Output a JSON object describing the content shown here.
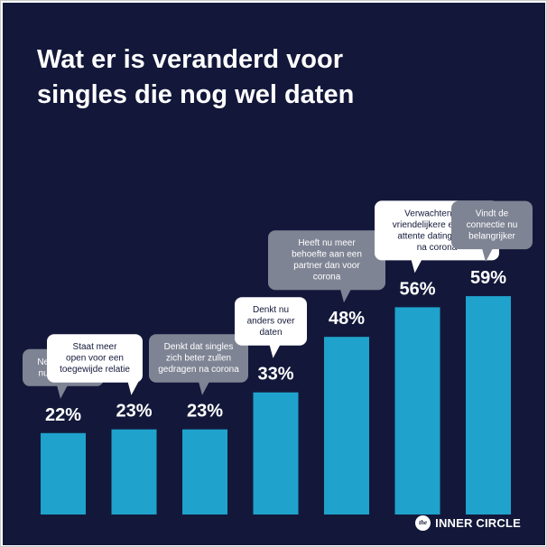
{
  "title_lines": [
    "Wat er is veranderd voor",
    "singles die nog wel daten"
  ],
  "logo": {
    "mark": "the",
    "text": "INNER CIRCLE"
  },
  "colors": {
    "background": "#13183a",
    "bar": "#1fa3cc",
    "bubble_gray": "#7f8494",
    "bubble_white": "#ffffff",
    "text_light": "#ffffff",
    "text_dark": "#13183a"
  },
  "chart_data": {
    "type": "bar",
    "title": "Wat er is veranderd voor singles die nog wel daten",
    "ylim": [
      0,
      100
    ],
    "grid": false,
    "categories": [
      "Neemt daten nu serieuzer",
      "Staat meer open voor een toegewijde relatie",
      "Denkt dat singles zich beter zullen gedragen na corona",
      "Denkt nu anders over daten",
      "Heeft nu meer behoefte aan een partner dan voor corona",
      "Verwachten een vriendelijkere en meer attente datingscene na corona",
      "Vindt de connectie nu belangrijker"
    ],
    "values": [
      22,
      23,
      23,
      33,
      48,
      56,
      59
    ],
    "value_labels": [
      "22%",
      "23%",
      "23%",
      "33%",
      "48%",
      "56%",
      "59%"
    ],
    "annotations": [
      {
        "lines": [
          "Neemt daten",
          "nu serieuzer"
        ],
        "style": "gray"
      },
      {
        "lines": [
          "Staat meer",
          "open voor een",
          "toegewijde relatie"
        ],
        "style": "white"
      },
      {
        "lines": [
          "Denkt dat singles",
          "zich beter zullen",
          "gedragen na corona"
        ],
        "style": "gray"
      },
      {
        "lines": [
          "Denkt nu",
          "anders over",
          "daten"
        ],
        "style": "white"
      },
      {
        "lines": [
          "Heeft nu meer",
          "behoefte aan een",
          "partner dan voor",
          "corona"
        ],
        "style": "gray"
      },
      {
        "lines": [
          "Verwachten een",
          "vriendelijkere en meer",
          "attente datingscene",
          "na corona"
        ],
        "style": "white"
      },
      {
        "lines": [
          "Vindt de",
          "connectie nu",
          "belangrijker"
        ],
        "style": "gray"
      }
    ]
  }
}
